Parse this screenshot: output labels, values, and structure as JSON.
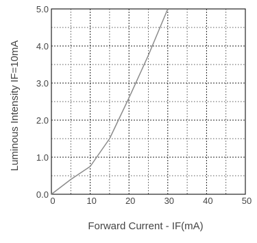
{
  "chart_data": {
    "type": "line",
    "title": "",
    "xlabel": "Forward Current - IF(mA)",
    "ylabel": "Luminous Intensity IF=10mA",
    "xlim": [
      0,
      50
    ],
    "ylim": [
      0,
      5
    ],
    "x_ticks": [
      "0",
      "10",
      "20",
      "30",
      "40",
      "50"
    ],
    "y_ticks": [
      "0.0",
      "1.0",
      "2.0",
      "3.0",
      "4.0",
      "5.0"
    ],
    "grid": true,
    "grid_style": "dashed",
    "series": [
      {
        "x": [
          0,
          5,
          10,
          15,
          20,
          25,
          30
        ],
        "y": [
          0.0,
          0.4,
          0.75,
          1.5,
          2.6,
          3.75,
          5.0
        ]
      }
    ],
    "colors": {
      "line": "#8a8a8a",
      "grid": "#222222",
      "axis": "#222222",
      "text": "#444444"
    }
  }
}
